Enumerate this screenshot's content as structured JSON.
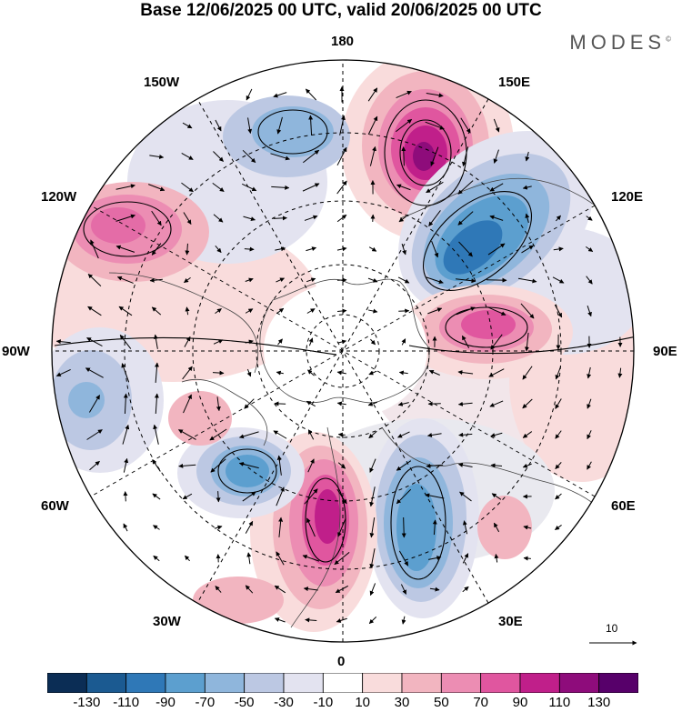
{
  "title": "Base 12/06/2025 00 UTC, valid 20/06/2025 00 UTC",
  "brand": "MODES",
  "brand_mark": "©",
  "map_type": "north-polar-stereographic",
  "longitude_labels": {
    "top": "180",
    "bottom": "0",
    "left": "90W",
    "right": "90E",
    "upper_left_150": "150W",
    "upper_left_120": "120W",
    "lower_left_60": "60W",
    "lower_left_30": "30W",
    "upper_right_150": "150E",
    "upper_right_120": "120E",
    "lower_right_60": "60E",
    "lower_right_30": "30E"
  },
  "colorbar": {
    "labels": [
      "-130",
      "-110",
      "-90",
      "-70",
      "-50",
      "-30",
      "-10",
      "10",
      "30",
      "50",
      "70",
      "90",
      "110",
      "130"
    ],
    "colors": [
      "#0b2d55",
      "#1b5a91",
      "#2f78b7",
      "#5c9fcf",
      "#8fb6dc",
      "#bcc8e3",
      "#e3e3f0",
      "#ffffff",
      "#f9dcdc",
      "#f2b5c0",
      "#ec8db3",
      "#e0569f",
      "#c01f8a",
      "#8e0c7b",
      "#57006a"
    ]
  },
  "reference_vector": {
    "value": "10"
  },
  "anomaly_centers": [
    {
      "sign": "positive",
      "level": 110,
      "location": "east Siberia near 160E"
    },
    {
      "sign": "negative",
      "level": -90,
      "location": "near 120E-130E"
    },
    {
      "sign": "positive",
      "level": 90,
      "location": "west Siberia near 80E"
    },
    {
      "sign": "negative",
      "level": -70,
      "location": "eastern Europe near 30E"
    },
    {
      "sign": "positive",
      "level": 110,
      "location": "North Atlantic near 5W"
    },
    {
      "sign": "negative",
      "level": -70,
      "location": "North Atlantic near 40W"
    },
    {
      "sign": "positive",
      "level": 70,
      "location": "Canada near 120W"
    },
    {
      "sign": "negative",
      "level": -50,
      "location": "Gulf of Alaska near 160W"
    },
    {
      "sign": "negative",
      "level": -50,
      "location": "near 90W"
    },
    {
      "sign": "positive",
      "level": 50,
      "location": "near 70W"
    }
  ]
}
